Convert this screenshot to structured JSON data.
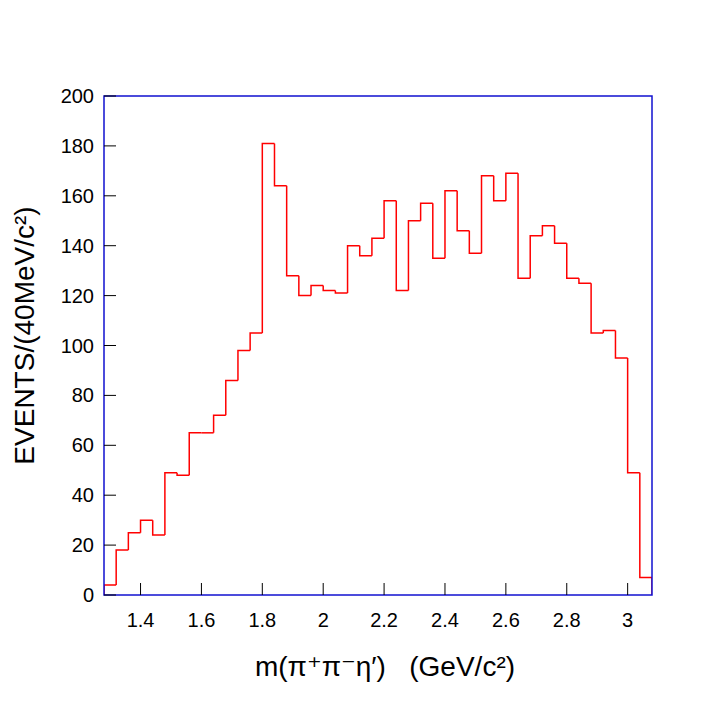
{
  "chart_data": {
    "type": "histogram",
    "x_label": "m(π⁺π⁻η′)   (GeV/c²)",
    "y_label": "EVENTS/(40MeV/c²)",
    "bins": [
      1.28,
      1.32,
      1.36,
      1.4,
      1.44,
      1.48,
      1.52,
      1.56,
      1.6,
      1.64,
      1.68,
      1.72,
      1.76,
      1.8,
      1.84,
      1.88,
      1.92,
      1.96,
      2,
      2.04,
      2.08,
      2.12,
      2.16,
      2.2,
      2.24,
      2.28,
      2.32,
      2.36,
      2.4,
      2.44,
      2.48,
      2.52,
      2.56,
      2.6,
      2.64,
      2.68,
      2.72,
      2.76,
      2.8,
      2.84,
      2.88,
      2.92,
      2.96,
      3,
      3.04,
      3.08
    ],
    "values": [
      4,
      18,
      25,
      30,
      24,
      49,
      48,
      65,
      65,
      72,
      86,
      98,
      105,
      181,
      164,
      128,
      120,
      124,
      122,
      121,
      140,
      136,
      143,
      158,
      122,
      150,
      157,
      135,
      162,
      146,
      137,
      168,
      158,
      169,
      127,
      144,
      148,
      141,
      127,
      125,
      105,
      106,
      95,
      49,
      7
    ],
    "color": "#ff0000",
    "xlim": [
      1.28,
      3.08
    ],
    "xticks": [
      1.4,
      1.6,
      1.8,
      2,
      2.2,
      2.4,
      2.6,
      2.8,
      3
    ],
    "ylim": [
      0,
      200
    ],
    "yticks": [
      0,
      20,
      40,
      60,
      80,
      100,
      120,
      140,
      160,
      180,
      200
    ],
    "grid": false
  }
}
